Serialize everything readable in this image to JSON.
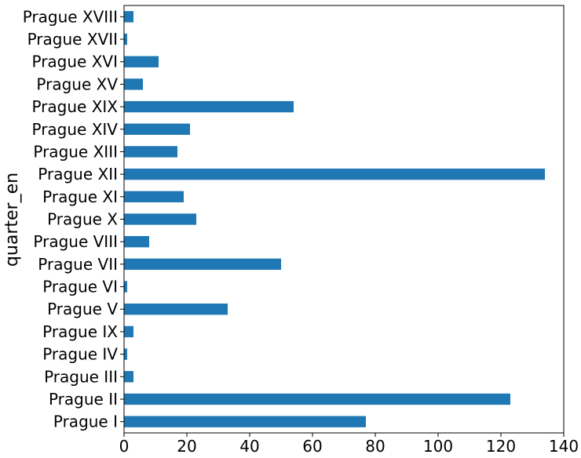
{
  "chart_data": {
    "type": "bar",
    "orientation": "horizontal",
    "ylabel": "quarter_en",
    "xlabel": "",
    "categories": [
      "Prague I",
      "Prague II",
      "Prague III",
      "Prague IV",
      "Prague IX",
      "Prague V",
      "Prague VI",
      "Prague VII",
      "Prague VIII",
      "Prague X",
      "Prague XI",
      "Prague XII",
      "Prague XIII",
      "Prague XIV",
      "Prague XIX",
      "Prague XV",
      "Prague XVI",
      "Prague XVII",
      "Prague XVIII"
    ],
    "values": [
      77,
      123,
      3,
      1,
      3,
      33,
      1,
      50,
      8,
      23,
      19,
      134,
      17,
      21,
      54,
      6,
      11,
      1,
      3
    ],
    "xlim": [
      0,
      140
    ],
    "xticks": [
      0,
      20,
      40,
      60,
      80,
      100,
      120,
      140
    ],
    "bar_color": "#1f77b4",
    "grid": false,
    "legend": "none"
  }
}
